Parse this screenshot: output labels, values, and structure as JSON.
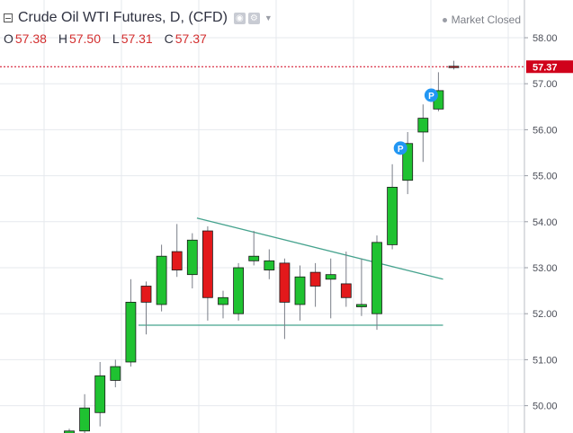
{
  "header": {
    "title": "Crude Oil WTI Futures, D, (CFD)",
    "open_label": "O",
    "open_value": "57.38",
    "high_label": "H",
    "high_value": "57.50",
    "low_label": "L",
    "low_value": "57.31",
    "close_label": "C",
    "close_value": "57.37",
    "market_status": "Market Closed",
    "icon_names": [
      "collapse-icon",
      "eye-icon",
      "settings-icon",
      "dropdown-caret-icon"
    ]
  },
  "colors": {
    "up": "#1fc231",
    "down": "#e3191b",
    "trendline": "#46a38e",
    "price_line": "#d0021b",
    "grid": "#e6e9ee",
    "marker": "#2196f3"
  },
  "chart_data": {
    "type": "candlestick",
    "title": "Crude Oil WTI Futures, D, (CFD)",
    "ylim": [
      49.4,
      58.7
    ],
    "y_ticks": [
      "50.00",
      "51.00",
      "52.00",
      "53.00",
      "54.00",
      "55.00",
      "56.00",
      "57.00",
      "58.00"
    ],
    "last_price": "57.37",
    "candles": [
      {
        "o": 49.4,
        "h": 49.5,
        "l": 49.4,
        "c": 49.45,
        "dir": "up"
      },
      {
        "o": 49.45,
        "h": 50.25,
        "l": 49.4,
        "c": 49.95,
        "dir": "up"
      },
      {
        "o": 49.85,
        "h": 50.95,
        "l": 49.55,
        "c": 50.65,
        "dir": "up"
      },
      {
        "o": 50.55,
        "h": 51.0,
        "l": 50.4,
        "c": 50.85,
        "dir": "up"
      },
      {
        "o": 50.95,
        "h": 52.75,
        "l": 50.85,
        "c": 52.25,
        "dir": "up"
      },
      {
        "o": 52.6,
        "h": 52.7,
        "l": 51.55,
        "c": 52.25,
        "dir": "down"
      },
      {
        "o": 52.2,
        "h": 53.5,
        "l": 52.05,
        "c": 53.25,
        "dir": "up"
      },
      {
        "o": 53.35,
        "h": 53.95,
        "l": 52.8,
        "c": 52.95,
        "dir": "down"
      },
      {
        "o": 52.85,
        "h": 53.75,
        "l": 52.55,
        "c": 53.6,
        "dir": "up"
      },
      {
        "o": 53.8,
        "h": 53.9,
        "l": 51.85,
        "c": 52.35,
        "dir": "down"
      },
      {
        "o": 52.2,
        "h": 52.5,
        "l": 51.9,
        "c": 52.35,
        "dir": "up"
      },
      {
        "o": 52.0,
        "h": 53.1,
        "l": 51.85,
        "c": 53.0,
        "dir": "up"
      },
      {
        "o": 53.15,
        "h": 53.8,
        "l": 53.05,
        "c": 53.25,
        "dir": "up"
      },
      {
        "o": 52.95,
        "h": 53.4,
        "l": 52.75,
        "c": 53.15,
        "dir": "up"
      },
      {
        "o": 53.1,
        "h": 53.2,
        "l": 51.45,
        "c": 52.25,
        "dir": "down"
      },
      {
        "o": 52.2,
        "h": 53.05,
        "l": 51.85,
        "c": 52.8,
        "dir": "up"
      },
      {
        "o": 52.9,
        "h": 53.1,
        "l": 52.15,
        "c": 52.6,
        "dir": "down"
      },
      {
        "o": 52.75,
        "h": 53.2,
        "l": 51.9,
        "c": 52.85,
        "dir": "up"
      },
      {
        "o": 52.65,
        "h": 53.35,
        "l": 52.15,
        "c": 52.35,
        "dir": "down"
      },
      {
        "o": 52.15,
        "h": 53.2,
        "l": 51.95,
        "c": 52.2,
        "dir": "up"
      },
      {
        "o": 52.0,
        "h": 53.7,
        "l": 51.65,
        "c": 53.55,
        "dir": "up"
      },
      {
        "o": 53.5,
        "h": 55.25,
        "l": 53.4,
        "c": 54.75,
        "dir": "up"
      },
      {
        "o": 54.9,
        "h": 55.95,
        "l": 54.6,
        "c": 55.7,
        "dir": "up"
      },
      {
        "o": 55.95,
        "h": 56.55,
        "l": 55.3,
        "c": 56.25,
        "dir": "up"
      },
      {
        "o": 56.45,
        "h": 57.25,
        "l": 56.4,
        "c": 56.85,
        "dir": "up"
      },
      {
        "o": 57.38,
        "h": 57.5,
        "l": 57.31,
        "c": 57.37,
        "dir": "down"
      }
    ],
    "markers": [
      {
        "label": "P",
        "index": 22,
        "price": 55.6
      },
      {
        "label": "P",
        "index": 24,
        "price": 56.75
      }
    ],
    "trendlines": [
      {
        "from_index": 8.3,
        "from_price": 54.08,
        "to_index": 24.3,
        "to_price": 52.75
      },
      {
        "from_index": 4.5,
        "from_price": 51.75,
        "to_index": 24.3,
        "to_price": 51.75
      }
    ]
  }
}
